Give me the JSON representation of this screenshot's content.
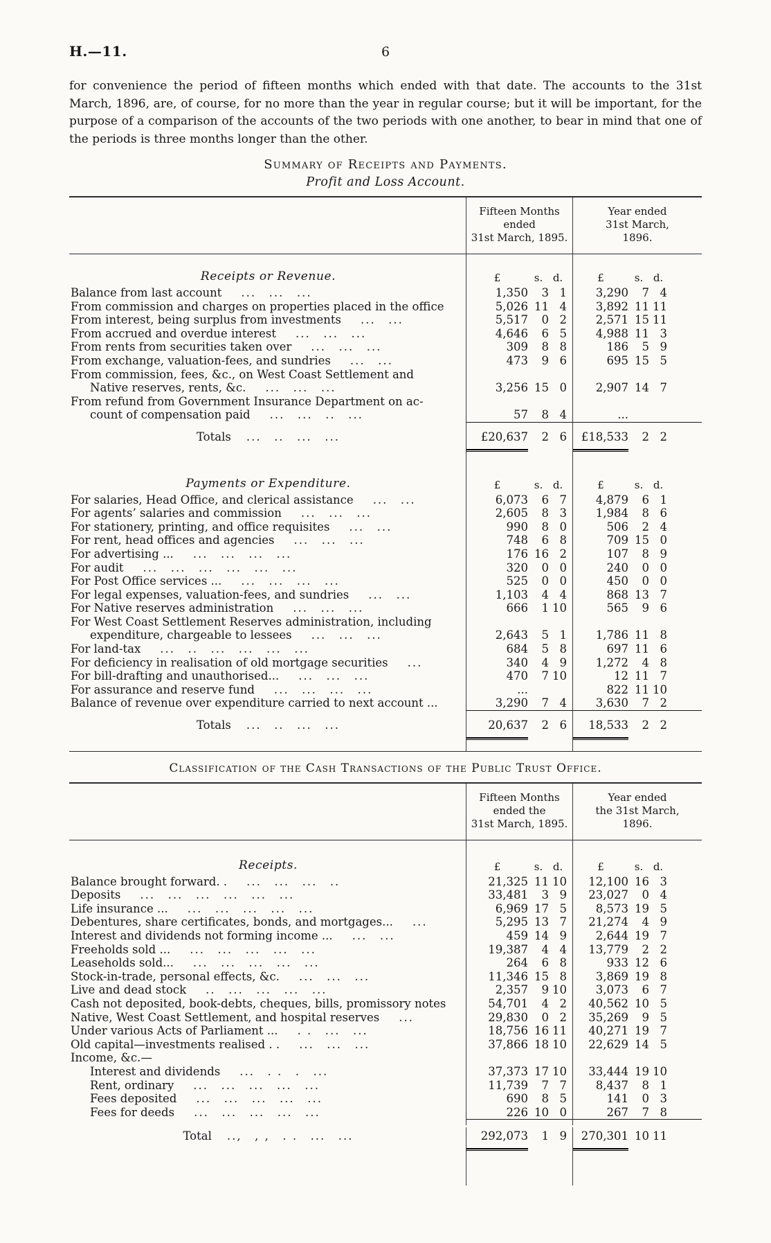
{
  "page": {
    "doc_ref": "H.—11.",
    "page_number": "6",
    "intro": "for convenience the period of fifteen months which ended with that date.  The accounts to the 31st March, 1896, are, of course, for no more than the year in regular course; but it will be important, for the purpose of a comparison of the accounts of the two periods with one another, to bear in mind that one of the periods is three months longer than the other."
  },
  "currency": {
    "pound": "£",
    "s": "s.",
    "d": "d."
  },
  "summary": {
    "title": "Summary of Receipts and Payments.",
    "subtitle": "Profit and Loss Account.",
    "col1_header": "Fifteen Months\nended\n31st March, 1895.",
    "col2_header": "Year ended\n31st March,\n1896.",
    "receipts": {
      "heading": "Receipts or Revenue.",
      "rows": [
        {
          "label": "Balance from last account",
          "dots": "... ... ...",
          "p1": "1,350",
          "s1": "3",
          "d1": "1",
          "p2": "3,290",
          "s2": "7",
          "d2": "4"
        },
        {
          "label": "From commission and charges on properties placed in the office",
          "p1": "5,026",
          "s1": "11",
          "d1": "4",
          "p2": "3,892",
          "s2": "11",
          "d2": "11"
        },
        {
          "label": "From interest, being surplus from investments",
          "dots": "... ...",
          "p1": "5,517",
          "s1": "0",
          "d1": "2",
          "p2": "2,571",
          "s2": "15",
          "d2": "11"
        },
        {
          "label": "From accrued and overdue interest",
          "dots": "... ... ...",
          "p1": "4,646",
          "s1": "6",
          "d1": "5",
          "p2": "4,988",
          "s2": "11",
          "d2": "3"
        },
        {
          "label": "From rents from securities taken over",
          "dots": "... ... ...",
          "p1": "309",
          "s1": "8",
          "d1": "8",
          "p2": "186",
          "s2": "5",
          "d2": "9"
        },
        {
          "label": "From exchange, valuation-fees, and sundries",
          "dots": "... ...",
          "p1": "473",
          "s1": "9",
          "d1": "6",
          "p2": "695",
          "s2": "15",
          "d2": "5"
        },
        {
          "label": "From commission, fees, &c., on West Coast Settlement and"
        },
        {
          "ind": true,
          "label": "Native reserves, rents, &c.",
          "dots": "... ... ...",
          "p1": "3,256",
          "s1": "15",
          "d1": "0",
          "p2": "2,907",
          "s2": "14",
          "d2": "7"
        },
        {
          "label": "From refund from Government Insurance Department on ac-"
        },
        {
          "ind": true,
          "label": "count of compensation paid",
          "dots": "... ... .. ...",
          "p1": "57",
          "s1": "8",
          "d1": "4",
          "p2": "..."
        }
      ],
      "total_label": "Totals",
      "total_dots": "... .. ... ...",
      "totals": {
        "c1": [
          "£20,637",
          "2",
          "6"
        ],
        "c2": [
          "£18,533",
          "2",
          "2"
        ]
      }
    },
    "payments": {
      "heading": "Payments or Expenditure.",
      "rows": [
        {
          "label": "For salaries, Head Office, and clerical assistance",
          "dots": "... ...",
          "p1": "6,073",
          "s1": "6",
          "d1": "7",
          "p2": "4,879",
          "s2": "6",
          "d2": "1"
        },
        {
          "label": "For agents’ salaries and commission",
          "dots": "... ... ...",
          "p1": "2,605",
          "s1": "8",
          "d1": "3",
          "p2": "1,984",
          "s2": "8",
          "d2": "6"
        },
        {
          "label": "For stationery, printing, and office requisites",
          "dots": "... ...",
          "p1": "990",
          "s1": "8",
          "d1": "0",
          "p2": "506",
          "s2": "2",
          "d2": "4"
        },
        {
          "label": "For rent, head offices and agencies",
          "dots": "... ... ...",
          "p1": "748",
          "s1": "6",
          "d1": "8",
          "p2": "709",
          "s2": "15",
          "d2": "0"
        },
        {
          "label": "For advertising ...",
          "dots": "... ... ... ...",
          "p1": "176",
          "s1": "16",
          "d1": "2",
          "p2": "107",
          "s2": "8",
          "d2": "9"
        },
        {
          "label": "For audit",
          "dots": "... ... ... ... ... ...",
          "p1": "320",
          "s1": "0",
          "d1": "0",
          "p2": "240",
          "s2": "0",
          "d2": "0"
        },
        {
          "label": "For Post Office services ...",
          "dots": "... ... ... ...",
          "p1": "525",
          "s1": "0",
          "d1": "0",
          "p2": "450",
          "s2": "0",
          "d2": "0"
        },
        {
          "label": "For legal expenses, valuation-fees, and sundries",
          "dots": "... ...",
          "p1": "1,103",
          "s1": "4",
          "d1": "4",
          "p2": "868",
          "s2": "13",
          "d2": "7"
        },
        {
          "label": "For Native reserves administration",
          "dots": "... ... ...",
          "p1": "666",
          "s1": "1",
          "d1": "10",
          "p2": "565",
          "s2": "9",
          "d2": "6"
        },
        {
          "label": "For West Coast Settlement Reserves administration, including"
        },
        {
          "ind": true,
          "label": "expenditure, chargeable to lessees",
          "dots": "... ... ...",
          "p1": "2,643",
          "s1": "5",
          "d1": "1",
          "p2": "1,786",
          "s2": "11",
          "d2": "8"
        },
        {
          "label": "For land-tax",
          "dots": "... .. ... ... ... ...",
          "p1": "684",
          "s1": "5",
          "d1": "8",
          "p2": "697",
          "s2": "11",
          "d2": "6"
        },
        {
          "label": "For deficiency in realisation of old mortgage securities",
          "dots": "...",
          "p1": "340",
          "s1": "4",
          "d1": "9",
          "p2": "1,272",
          "s2": "4",
          "d2": "8"
        },
        {
          "label": "For bill-drafting and unauthorised...",
          "dots": "... ... ...",
          "p1": "470",
          "s1": "7",
          "d1": "10",
          "p2": "12",
          "s2": "11",
          "d2": "7"
        },
        {
          "label": "For assurance and reserve fund",
          "dots": "... ... ... ...",
          "p1": "...",
          "p2": "822",
          "s2": "11",
          "d2": "10"
        },
        {
          "label": "Balance of revenue over expenditure carried to next account ...",
          "p1": "3,290",
          "s1": "7",
          "d1": "4",
          "p2": "3,630",
          "s2": "7",
          "d2": "2"
        }
      ],
      "total_label": "Totals",
      "total_dots": "... .. ... ...",
      "totals": {
        "c1": [
          "20,637",
          "2",
          "6"
        ],
        "c2": [
          "18,533",
          "2",
          "2"
        ]
      }
    }
  },
  "classification": {
    "title": "Classification of the Cash Transactions of the Public Trust Office.",
    "col1_header": "Fifteen Months\nended the\n31st March, 1895.",
    "col2_header": "Year ended\nthe 31st March,\n1896.",
    "heading": "Receipts.",
    "rows": [
      {
        "label": "Balance brought forward. .",
        "dots": "... ... ... ..",
        "p1": "21,325",
        "s1": "11",
        "d1": "10",
        "p2": "12,100",
        "s2": "16",
        "d2": "3"
      },
      {
        "label": "Deposits",
        "dots": "... ... ... ... ... ...",
        "p1": "33,481",
        "s1": "3",
        "d1": "9",
        "p2": "23,027",
        "s2": "0",
        "d2": "4"
      },
      {
        "label": "Life insurance ...",
        "dots": "... ... ... ... ...",
        "p1": "6,969",
        "s1": "17",
        "d1": "5",
        "p2": "8,573",
        "s2": "19",
        "d2": "5"
      },
      {
        "label": "Debentures, share certificates, bonds, and mortgages...",
        "dots": "...",
        "p1": "5,295",
        "s1": "13",
        "d1": "7",
        "p2": "21,274",
        "s2": "4",
        "d2": "9"
      },
      {
        "label": "Interest and dividends not forming income ...",
        "dots": "... ...",
        "p1": "459",
        "s1": "14",
        "d1": "9",
        "p2": "2,644",
        "s2": "19",
        "d2": "7"
      },
      {
        "label": "Freeholds sold ...",
        "dots": "... ... ... ... ...",
        "p1": "19,387",
        "s1": "4",
        "d1": "4",
        "p2": "13,779",
        "s2": "2",
        "d2": "2"
      },
      {
        "label": "Leaseholds sold...",
        "dots": "... ... ... ... ...",
        "p1": "264",
        "s1": "6",
        "d1": "8",
        "p2": "933",
        "s2": "12",
        "d2": "6"
      },
      {
        "label": "Stock-in-trade, personal effects, &c.",
        "dots": "... ... ...",
        "p1": "11,346",
        "s1": "15",
        "d1": "8",
        "p2": "3,869",
        "s2": "19",
        "d2": "8"
      },
      {
        "label": "Live and dead stock",
        "dots": ".. ... ... ... ...",
        "p1": "2,357",
        "s1": "9",
        "d1": "10",
        "p2": "3,073",
        "s2": "6",
        "d2": "7"
      },
      {
        "label": "Cash not deposited, book-debts, cheques, bills, promissory notes",
        "p1": "54,701",
        "s1": "4",
        "d1": "2",
        "p2": "40,562",
        "s2": "10",
        "d2": "5"
      },
      {
        "label": "Native, West Coast Settlement, and hospital reserves",
        "dots": "...",
        "p1": "29,830",
        "s1": "0",
        "d1": "2",
        "p2": "35,269",
        "s2": "9",
        "d2": "5"
      },
      {
        "label": "Under various Acts of Parliament ...",
        "dots": ". . ... ...",
        "p1": "18,756",
        "s1": "16",
        "d1": "11",
        "p2": "40,271",
        "s2": "19",
        "d2": "7"
      },
      {
        "label": "Old capital—investments realised . .",
        "dots": "... ... ...",
        "p1": "37,866",
        "s1": "18",
        "d1": "10",
        "p2": "22,629",
        "s2": "14",
        "d2": "5"
      },
      {
        "label": "Income, &c.—"
      },
      {
        "ind": true,
        "label": "Interest and dividends",
        "dots": "... . . . ...",
        "p1": "37,373",
        "s1": "17",
        "d1": "10",
        "p2": "33,444",
        "s2": "19",
        "d2": "10"
      },
      {
        "ind": true,
        "label": "Rent, ordinary",
        "dots": "... ... ... ... ...",
        "p1": "11,739",
        "s1": "7",
        "d1": "7",
        "p2": "8,437",
        "s2": "8",
        "d2": "1"
      },
      {
        "ind": true,
        "label": "Fees deposited",
        "dots": "... ... ... ... ...",
        "p1": "690",
        "s1": "8",
        "d1": "5",
        "p2": "141",
        "s2": "0",
        "d2": "3"
      },
      {
        "ind": true,
        "label": "Fees for deeds",
        "dots": "... ... ... ... ...",
        "p1": "226",
        "s1": "10",
        "d1": "0",
        "p2": "267",
        "s2": "7",
        "d2": "8"
      }
    ],
    "total_label": "Total",
    "total_dots": ".., , , . . ... ...",
    "totals": {
      "c1": [
        "292,073",
        "1",
        "9"
      ],
      "c2": [
        "270,301",
        "10",
        "11"
      ]
    }
  }
}
